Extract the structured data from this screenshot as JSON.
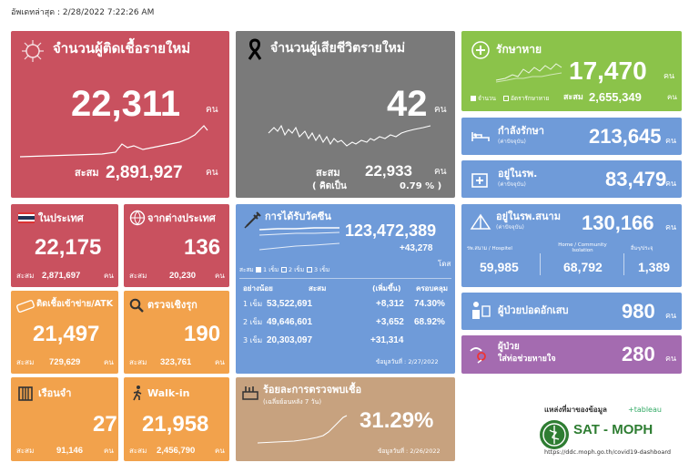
{
  "updated": "อัพเดทล่าสุด : 2/28/2022 7:22:26 AM",
  "unit": "คน",
  "colors": {
    "new_cases": "#c9515f",
    "deaths": "#7a7a7a",
    "recovered": "#8bc34a",
    "blue": "#6f9bd9",
    "domestic": "#c9515f",
    "abroad": "#c9515f",
    "orange": "#f2a24c",
    "vaccine": "#6f9bd9",
    "positivity": "#c7a27f"
  },
  "new_cases": {
    "title": "จำนวนผู้ติดเชื้อรายใหม่",
    "value": "22,311",
    "cum_label": "สะสม",
    "cum_value": "2,891,927"
  },
  "deaths": {
    "title": "จำนวนผู้เสียชีวิตรายใหม่",
    "value": "42",
    "cum_label": "สะสม",
    "cum_value": "22,933",
    "pct_label": "( คิดเป็น",
    "pct_value": "0.79 % )"
  },
  "recovered": {
    "title": "รักษาหาย",
    "value": "17,470",
    "legend_count": "จำนวน",
    "legend_rate": "อัตรารักษาหาย",
    "cum_label": "สะสม",
    "cum_value": "2,655,349"
  },
  "treating": {
    "title": "กำลังรักษา",
    "note": "(ค่าปัจจุบัน)",
    "value": "213,645"
  },
  "hospital": {
    "title": "อยู่ในรพ.",
    "note": "(ค่าปัจจุบัน)",
    "value": "83,479"
  },
  "field_hospital": {
    "title": "อยู่ในรพ.สนาม",
    "note": "(ค่าปัจจุบัน)",
    "value": "130,166",
    "col1_label": "รพ.สนาม / Hospitel",
    "col1_value": "59,985",
    "col2_label": "Home / Community Isolation",
    "col2_value": "68,792",
    "col3_label": "อื่นๆ/ประจุ",
    "col3_value": "1,389"
  },
  "pneumonia": {
    "title": "ผู้ป่วยปอดอักเสบ",
    "value": "980"
  },
  "ventilator": {
    "title": "ผู้ป่วย",
    "title2": "ใส่ท่อช่วยหายใจ",
    "value": "280"
  },
  "domestic": {
    "title": "ในประเทศ",
    "value": "22,175",
    "cum_label": "สะสม",
    "cum_value": "2,871,697"
  },
  "abroad": {
    "title": "จากต่างประเทศ",
    "value": "136",
    "cum_label": "สะสม",
    "cum_value": "20,230"
  },
  "atk": {
    "title": "ติดเชื้อเข้าข่าย/ATK",
    "value": "21,497",
    "cum_label": "สะสม",
    "cum_value": "729,629"
  },
  "proactive": {
    "title": "ตรวจเชิงรุก",
    "value": "190",
    "cum_label": "สะสม",
    "cum_value": "323,761"
  },
  "prison": {
    "title": "เรือนจำ",
    "value": "27",
    "cum_label": "สะสม",
    "cum_value": "91,146"
  },
  "walkin": {
    "title": "Walk-in",
    "value": "21,958",
    "cum_label": "สะสม",
    "cum_value": "2,456,790"
  },
  "vaccine": {
    "title": "การได้รับวัคซีน",
    "total": "123,472,389",
    "daily": "+43,278",
    "dose_unit": "โดส",
    "legend_cum": "สะสม",
    "legend_1": "1 เข็ม",
    "legend_2": "2 เข็ม",
    "legend_3": "3 เข็ม",
    "headers": [
      "อย่างน้อย",
      "สะสม",
      "(เพิ่มขึ้น)",
      "ครอบคลุม"
    ],
    "rows": [
      {
        "dose": "1 เข็ม",
        "cum": "53,522,691",
        "inc": "+8,312",
        "cov": "74.30%"
      },
      {
        "dose": "2 เข็ม",
        "cum": "49,646,601",
        "inc": "+3,652",
        "cov": "68.92%"
      },
      {
        "dose": "3 เข็ม",
        "cum": "20,303,097",
        "inc": "+31,314",
        "cov": ""
      }
    ],
    "data_date": "ข้อมูลวันที่ : 2/27/2022"
  },
  "positivity": {
    "title": "ร้อยละการตรวจพบเชื้อ",
    "subtitle": "(เฉลี่ยย้อนหลัง 7 วัน)",
    "value": "31.29%",
    "data_date": "ข้อมูลวันที่ : 2/26/2022"
  },
  "source": {
    "label": "แหล่งที่มาของข้อมูล",
    "tableau": "+tableau",
    "brand": "SAT - MOPH",
    "url": "https://ddc.moph.go.th/covid19-dashboard"
  }
}
